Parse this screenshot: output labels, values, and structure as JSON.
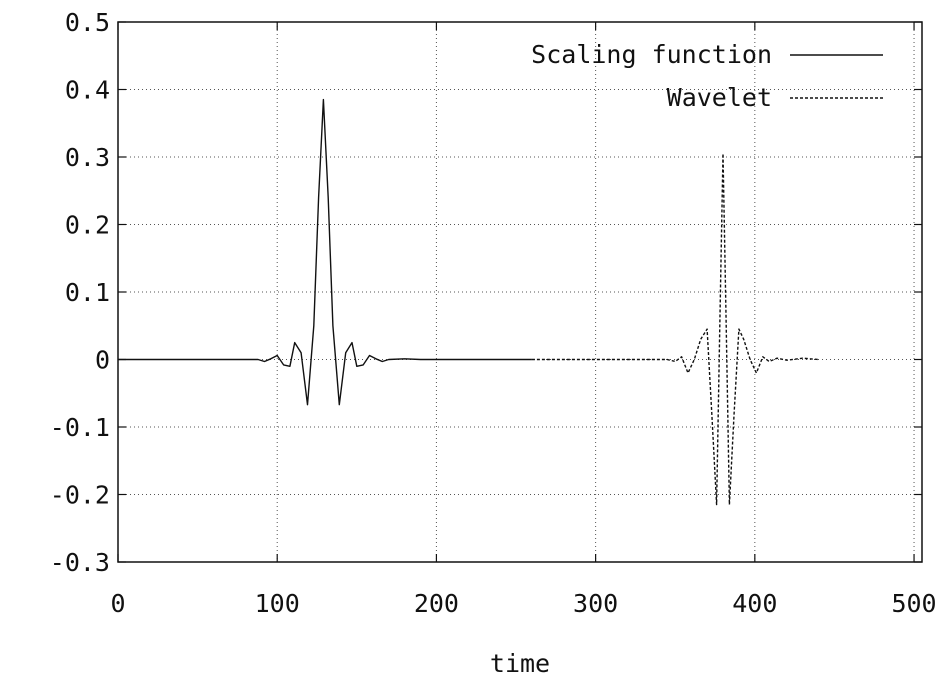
{
  "chart_data": {
    "type": "line",
    "title": "",
    "xlabel": "time",
    "ylabel": "",
    "xlim": [
      0,
      505
    ],
    "ylim": [
      -0.3,
      0.5
    ],
    "x_ticks": [
      0,
      100,
      200,
      300,
      400,
      500
    ],
    "y_ticks": [
      -0.3,
      -0.2,
      -0.1,
      0,
      0.1,
      0.2,
      0.3,
      0.4,
      0.5
    ],
    "x_tick_labels": [
      "0",
      "100",
      "200",
      "300",
      "400",
      "500"
    ],
    "y_tick_labels": [
      "-0.3",
      "-0.2",
      "-0.1",
      "0",
      "0.1",
      "0.2",
      "0.3",
      "0.4",
      "0.5"
    ],
    "grid": true,
    "legend_position": "top-right",
    "series": [
      {
        "name": "Scaling function",
        "style": "solid",
        "color": "#111111",
        "points": [
          [
            0,
            0
          ],
          [
            80,
            0
          ],
          [
            88,
            0.0
          ],
          [
            92,
            -0.003
          ],
          [
            96,
            0.001
          ],
          [
            100,
            0.006
          ],
          [
            104,
            -0.008
          ],
          [
            108,
            -0.01
          ],
          [
            111,
            0.025
          ],
          [
            115,
            0.01
          ],
          [
            119,
            -0.067
          ],
          [
            123,
            0.05
          ],
          [
            126,
            0.24
          ],
          [
            129,
            0.385
          ],
          [
            132,
            0.24
          ],
          [
            135,
            0.05
          ],
          [
            139,
            -0.067
          ],
          [
            143,
            0.01
          ],
          [
            147,
            0.025
          ],
          [
            150,
            -0.01
          ],
          [
            154,
            -0.008
          ],
          [
            158,
            0.006
          ],
          [
            162,
            0.001
          ],
          [
            166,
            -0.003
          ],
          [
            170,
            0.0
          ],
          [
            180,
            0.001
          ],
          [
            190,
            0
          ],
          [
            260,
            0
          ]
        ]
      },
      {
        "name": "Wavelet",
        "style": "dashed",
        "color": "#111111",
        "points": [
          [
            260,
            0
          ],
          [
            330,
            0
          ],
          [
            345,
            0.0
          ],
          [
            350,
            -0.003
          ],
          [
            354,
            0.004
          ],
          [
            358,
            -0.02
          ],
          [
            362,
            0.0
          ],
          [
            366,
            0.03
          ],
          [
            370,
            0.045
          ],
          [
            373,
            -0.08
          ],
          [
            376,
            -0.215
          ],
          [
            378,
            0.05
          ],
          [
            380,
            0.305
          ],
          [
            382,
            0.05
          ],
          [
            384,
            -0.215
          ],
          [
            387,
            -0.08
          ],
          [
            390,
            0.045
          ],
          [
            393,
            0.03
          ],
          [
            397,
            0.0
          ],
          [
            401,
            -0.02
          ],
          [
            405,
            0.004
          ],
          [
            409,
            -0.003
          ],
          [
            414,
            0.002
          ],
          [
            420,
            -0.001
          ],
          [
            430,
            0.002
          ],
          [
            440,
            0
          ]
        ]
      }
    ]
  }
}
